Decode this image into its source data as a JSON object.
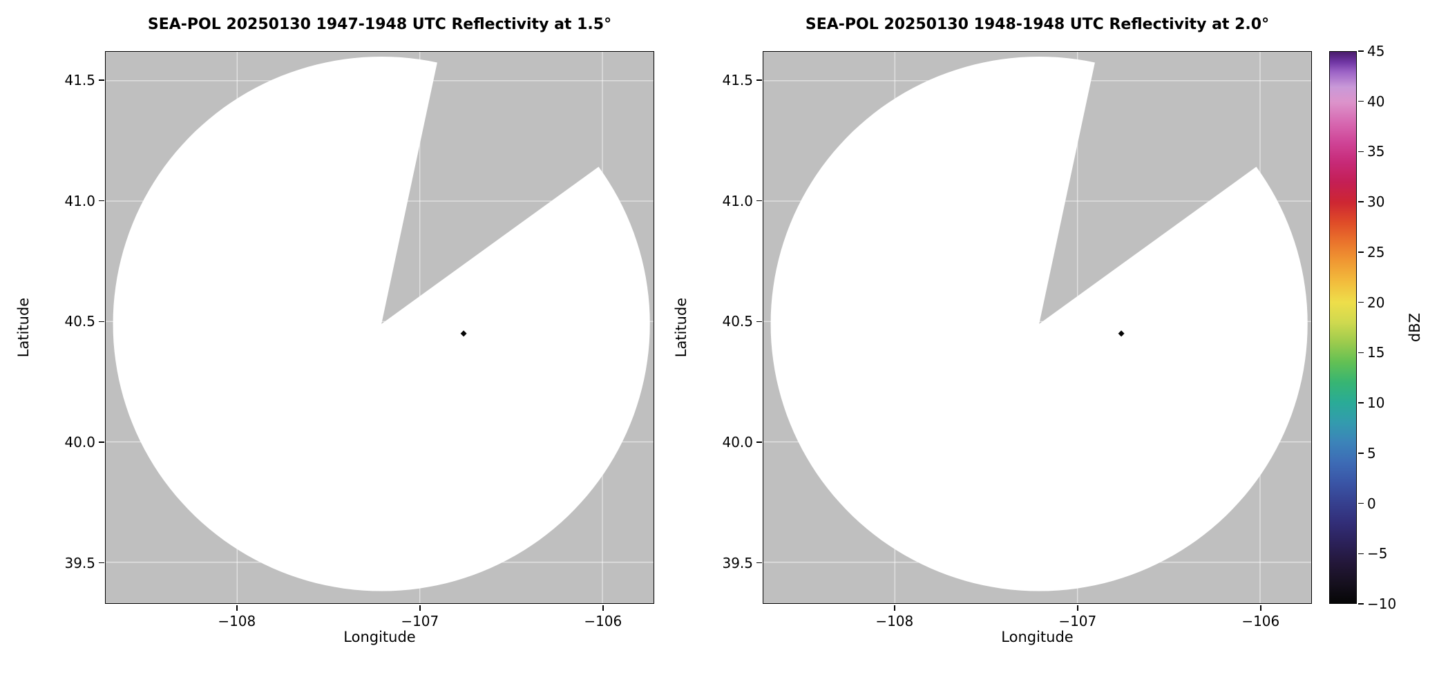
{
  "figure": {
    "background": "#ffffff"
  },
  "chart_data": [
    {
      "type": "heatmap",
      "subtype": "radar-ppi-map",
      "title": "SEA-POL 20250130 1947-1948 UTC Reflectivity at 1.5°",
      "xlabel": "Longitude",
      "ylabel": "Latitude",
      "xlim": [
        -108.72,
        -105.72
      ],
      "ylim": [
        39.33,
        41.62
      ],
      "xticks": [
        -108,
        -107,
        -106
      ],
      "xtick_labels": [
        "−108",
        "−107",
        "−106"
      ],
      "yticks": [
        39.5,
        40.0,
        40.5,
        41.0,
        41.5
      ],
      "ytick_labels": [
        "39.5",
        "40.0",
        "40.5",
        "41.0",
        "41.5"
      ],
      "grid": true,
      "radar_center": {
        "lon": -107.21,
        "lat": 40.49
      },
      "scan_radius": {
        "dlon": 1.47,
        "dlat": 1.11
      },
      "missing_sector_azimuth_deg": [
        13,
        54
      ],
      "echoes": [
        {
          "lon": -106.76,
          "lat": 40.45,
          "dbz": -10
        }
      ],
      "colors": {
        "outside_scan": "#bfbfbf",
        "scan_fill": "#ffffff",
        "grid": "rgba(255,255,255,0.55)",
        "frame": "#000000"
      }
    },
    {
      "type": "heatmap",
      "subtype": "radar-ppi-map",
      "title": "SEA-POL 20250130 1948-1948 UTC Reflectivity at 2.0°",
      "xlabel": "Longitude",
      "ylabel": "Latitude",
      "xlim": [
        -108.72,
        -105.72
      ],
      "ylim": [
        39.33,
        41.62
      ],
      "xticks": [
        -108,
        -107,
        -106
      ],
      "xtick_labels": [
        "−108",
        "−107",
        "−106"
      ],
      "yticks": [
        39.5,
        40.0,
        40.5,
        41.0,
        41.5
      ],
      "ytick_labels": [
        "39.5",
        "40.0",
        "40.5",
        "41.0",
        "41.5"
      ],
      "grid": true,
      "radar_center": {
        "lon": -107.21,
        "lat": 40.49
      },
      "scan_radius": {
        "dlon": 1.47,
        "dlat": 1.11
      },
      "missing_sector_azimuth_deg": [
        13,
        54
      ],
      "echoes": [
        {
          "lon": -106.76,
          "lat": 40.45,
          "dbz": -10
        }
      ],
      "colors": {
        "outside_scan": "#bfbfbf",
        "scan_fill": "#ffffff",
        "grid": "rgba(255,255,255,0.55)",
        "frame": "#000000"
      }
    }
  ],
  "colorbar": {
    "label": "dBZ",
    "min": -10,
    "max": 45,
    "ticks": [
      45,
      40,
      35,
      30,
      25,
      20,
      15,
      10,
      5,
      0,
      -5,
      -10
    ],
    "tick_labels": [
      "45",
      "40",
      "35",
      "30",
      "25",
      "20",
      "15",
      "10",
      "5",
      "0",
      "−5",
      "−10"
    ],
    "stops": [
      {
        "value": -10,
        "color": "#060606"
      },
      {
        "value": -8,
        "color": "#16101f"
      },
      {
        "value": -6,
        "color": "#231739"
      },
      {
        "value": -4,
        "color": "#2b2159"
      },
      {
        "value": -2,
        "color": "#322e78"
      },
      {
        "value": 0,
        "color": "#36408f"
      },
      {
        "value": 2,
        "color": "#3a55a6"
      },
      {
        "value": 4,
        "color": "#3d6bb5"
      },
      {
        "value": 6,
        "color": "#3c83b9"
      },
      {
        "value": 8,
        "color": "#339bae"
      },
      {
        "value": 10,
        "color": "#2aab97"
      },
      {
        "value": 12,
        "color": "#37b573"
      },
      {
        "value": 14,
        "color": "#62c054"
      },
      {
        "value": 16,
        "color": "#9ccb4d"
      },
      {
        "value": 18,
        "color": "#cfd94f"
      },
      {
        "value": 20,
        "color": "#eede4a"
      },
      {
        "value": 22,
        "color": "#f2bd3d"
      },
      {
        "value": 24,
        "color": "#f09a33"
      },
      {
        "value": 26,
        "color": "#ea742c"
      },
      {
        "value": 28,
        "color": "#df4b28"
      },
      {
        "value": 30,
        "color": "#cd2633"
      },
      {
        "value": 32,
        "color": "#c41f55"
      },
      {
        "value": 34,
        "color": "#c72a78"
      },
      {
        "value": 36,
        "color": "#cf4597"
      },
      {
        "value": 38,
        "color": "#d76ab2"
      },
      {
        "value": 40,
        "color": "#dc94cb"
      },
      {
        "value": 41.5,
        "color": "#c999d8"
      },
      {
        "value": 43,
        "color": "#9c63c6"
      },
      {
        "value": 44,
        "color": "#6f35a3"
      },
      {
        "value": 45,
        "color": "#491b6b"
      }
    ]
  }
}
